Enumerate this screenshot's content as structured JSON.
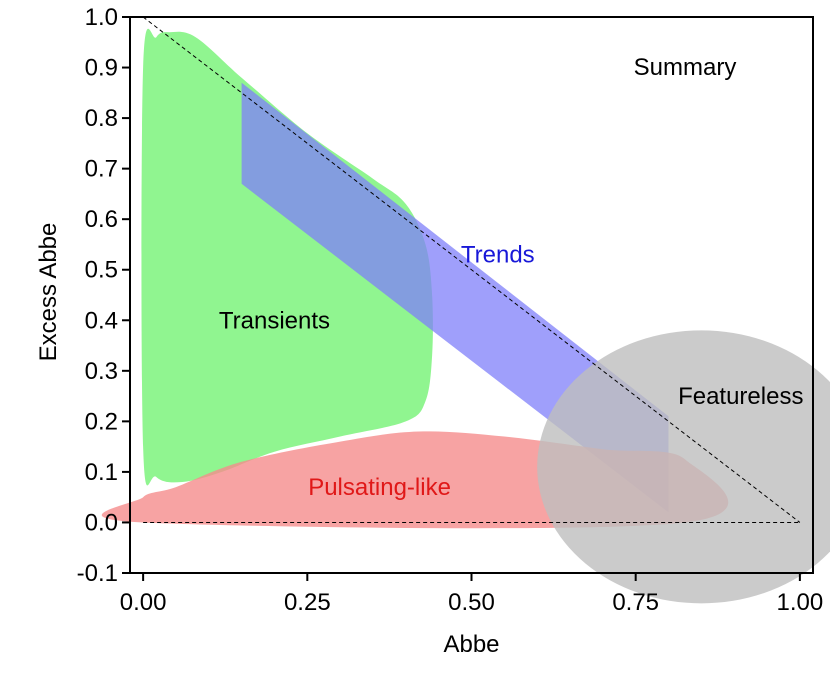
{
  "chart_data": {
    "type": "area",
    "title": "Summary",
    "xlabel": "Abbe",
    "ylabel": "Excess Abbe",
    "xlim": [
      -0.02,
      1.02
    ],
    "ylim": [
      -0.1,
      1.0
    ],
    "x_ticks": [
      0.0,
      0.25,
      0.5,
      0.75,
      1.0
    ],
    "x_tick_labels": [
      "0.00",
      "0.25",
      "0.50",
      "0.75",
      "1.00"
    ],
    "y_ticks": [
      -0.1,
      0.0,
      0.1,
      0.2,
      0.3,
      0.4,
      0.5,
      0.6,
      0.7,
      0.8,
      0.9,
      1.0
    ],
    "y_tick_labels": [
      "-0.1",
      "0.0",
      "0.1",
      "0.2",
      "0.3",
      "0.4",
      "0.5",
      "0.6",
      "0.7",
      "0.8",
      "0.9",
      "1.0"
    ],
    "grid": false,
    "reference_lines": [
      {
        "style": "dashed",
        "points": [
          [
            0.0,
            1.0
          ],
          [
            1.0,
            0.0
          ]
        ]
      },
      {
        "style": "dashed",
        "points": [
          [
            0.0,
            0.0
          ],
          [
            1.0,
            0.0
          ]
        ]
      }
    ],
    "regions": [
      {
        "name": "Transients",
        "color": "#90f590",
        "label_color": "#000000",
        "label_at": [
          0.2,
          0.4
        ],
        "points": [
          [
            0.02,
            0.96
          ],
          [
            0.04,
            0.97
          ],
          [
            0.08,
            0.96
          ],
          [
            0.15,
            0.88
          ],
          [
            0.25,
            0.77
          ],
          [
            0.35,
            0.68
          ],
          [
            0.4,
            0.63
          ],
          [
            0.43,
            0.55
          ],
          [
            0.44,
            0.45
          ],
          [
            0.44,
            0.33
          ],
          [
            0.43,
            0.24
          ],
          [
            0.4,
            0.2
          ],
          [
            0.3,
            0.17
          ],
          [
            0.2,
            0.14
          ],
          [
            0.12,
            0.1
          ],
          [
            0.06,
            0.08
          ],
          [
            0.02,
            0.09
          ],
          [
            0.0,
            0.15
          ],
          [
            0.0,
            0.9
          ]
        ]
      },
      {
        "name": "Trends",
        "color": "#7f7ff9",
        "label_color": "#1818d8",
        "label_at": [
          0.54,
          0.53
        ],
        "points": [
          [
            0.15,
            0.87
          ],
          [
            0.8,
            0.21
          ],
          [
            0.8,
            0.02
          ],
          [
            0.15,
            0.67
          ]
        ]
      },
      {
        "name": "Pulsating-like",
        "color": "#f58c8c",
        "label_color": "#e01818",
        "label_at": [
          0.36,
          0.07
        ],
        "points": [
          [
            0.0,
            0.05
          ],
          [
            0.05,
            0.07
          ],
          [
            0.15,
            0.12
          ],
          [
            0.3,
            0.16
          ],
          [
            0.42,
            0.18
          ],
          [
            0.55,
            0.17
          ],
          [
            0.7,
            0.145
          ],
          [
            0.825,
            0.125
          ],
          [
            0.825,
            0.0
          ],
          [
            0.0,
            0.0
          ]
        ]
      },
      {
        "name": "Featureless",
        "color": "#bebebe",
        "label_color": "#000000",
        "label_at": [
          0.91,
          0.25
        ],
        "center": [
          0.85,
          0.11
        ],
        "radius_x": 0.25,
        "radius_y": 0.27
      }
    ]
  }
}
